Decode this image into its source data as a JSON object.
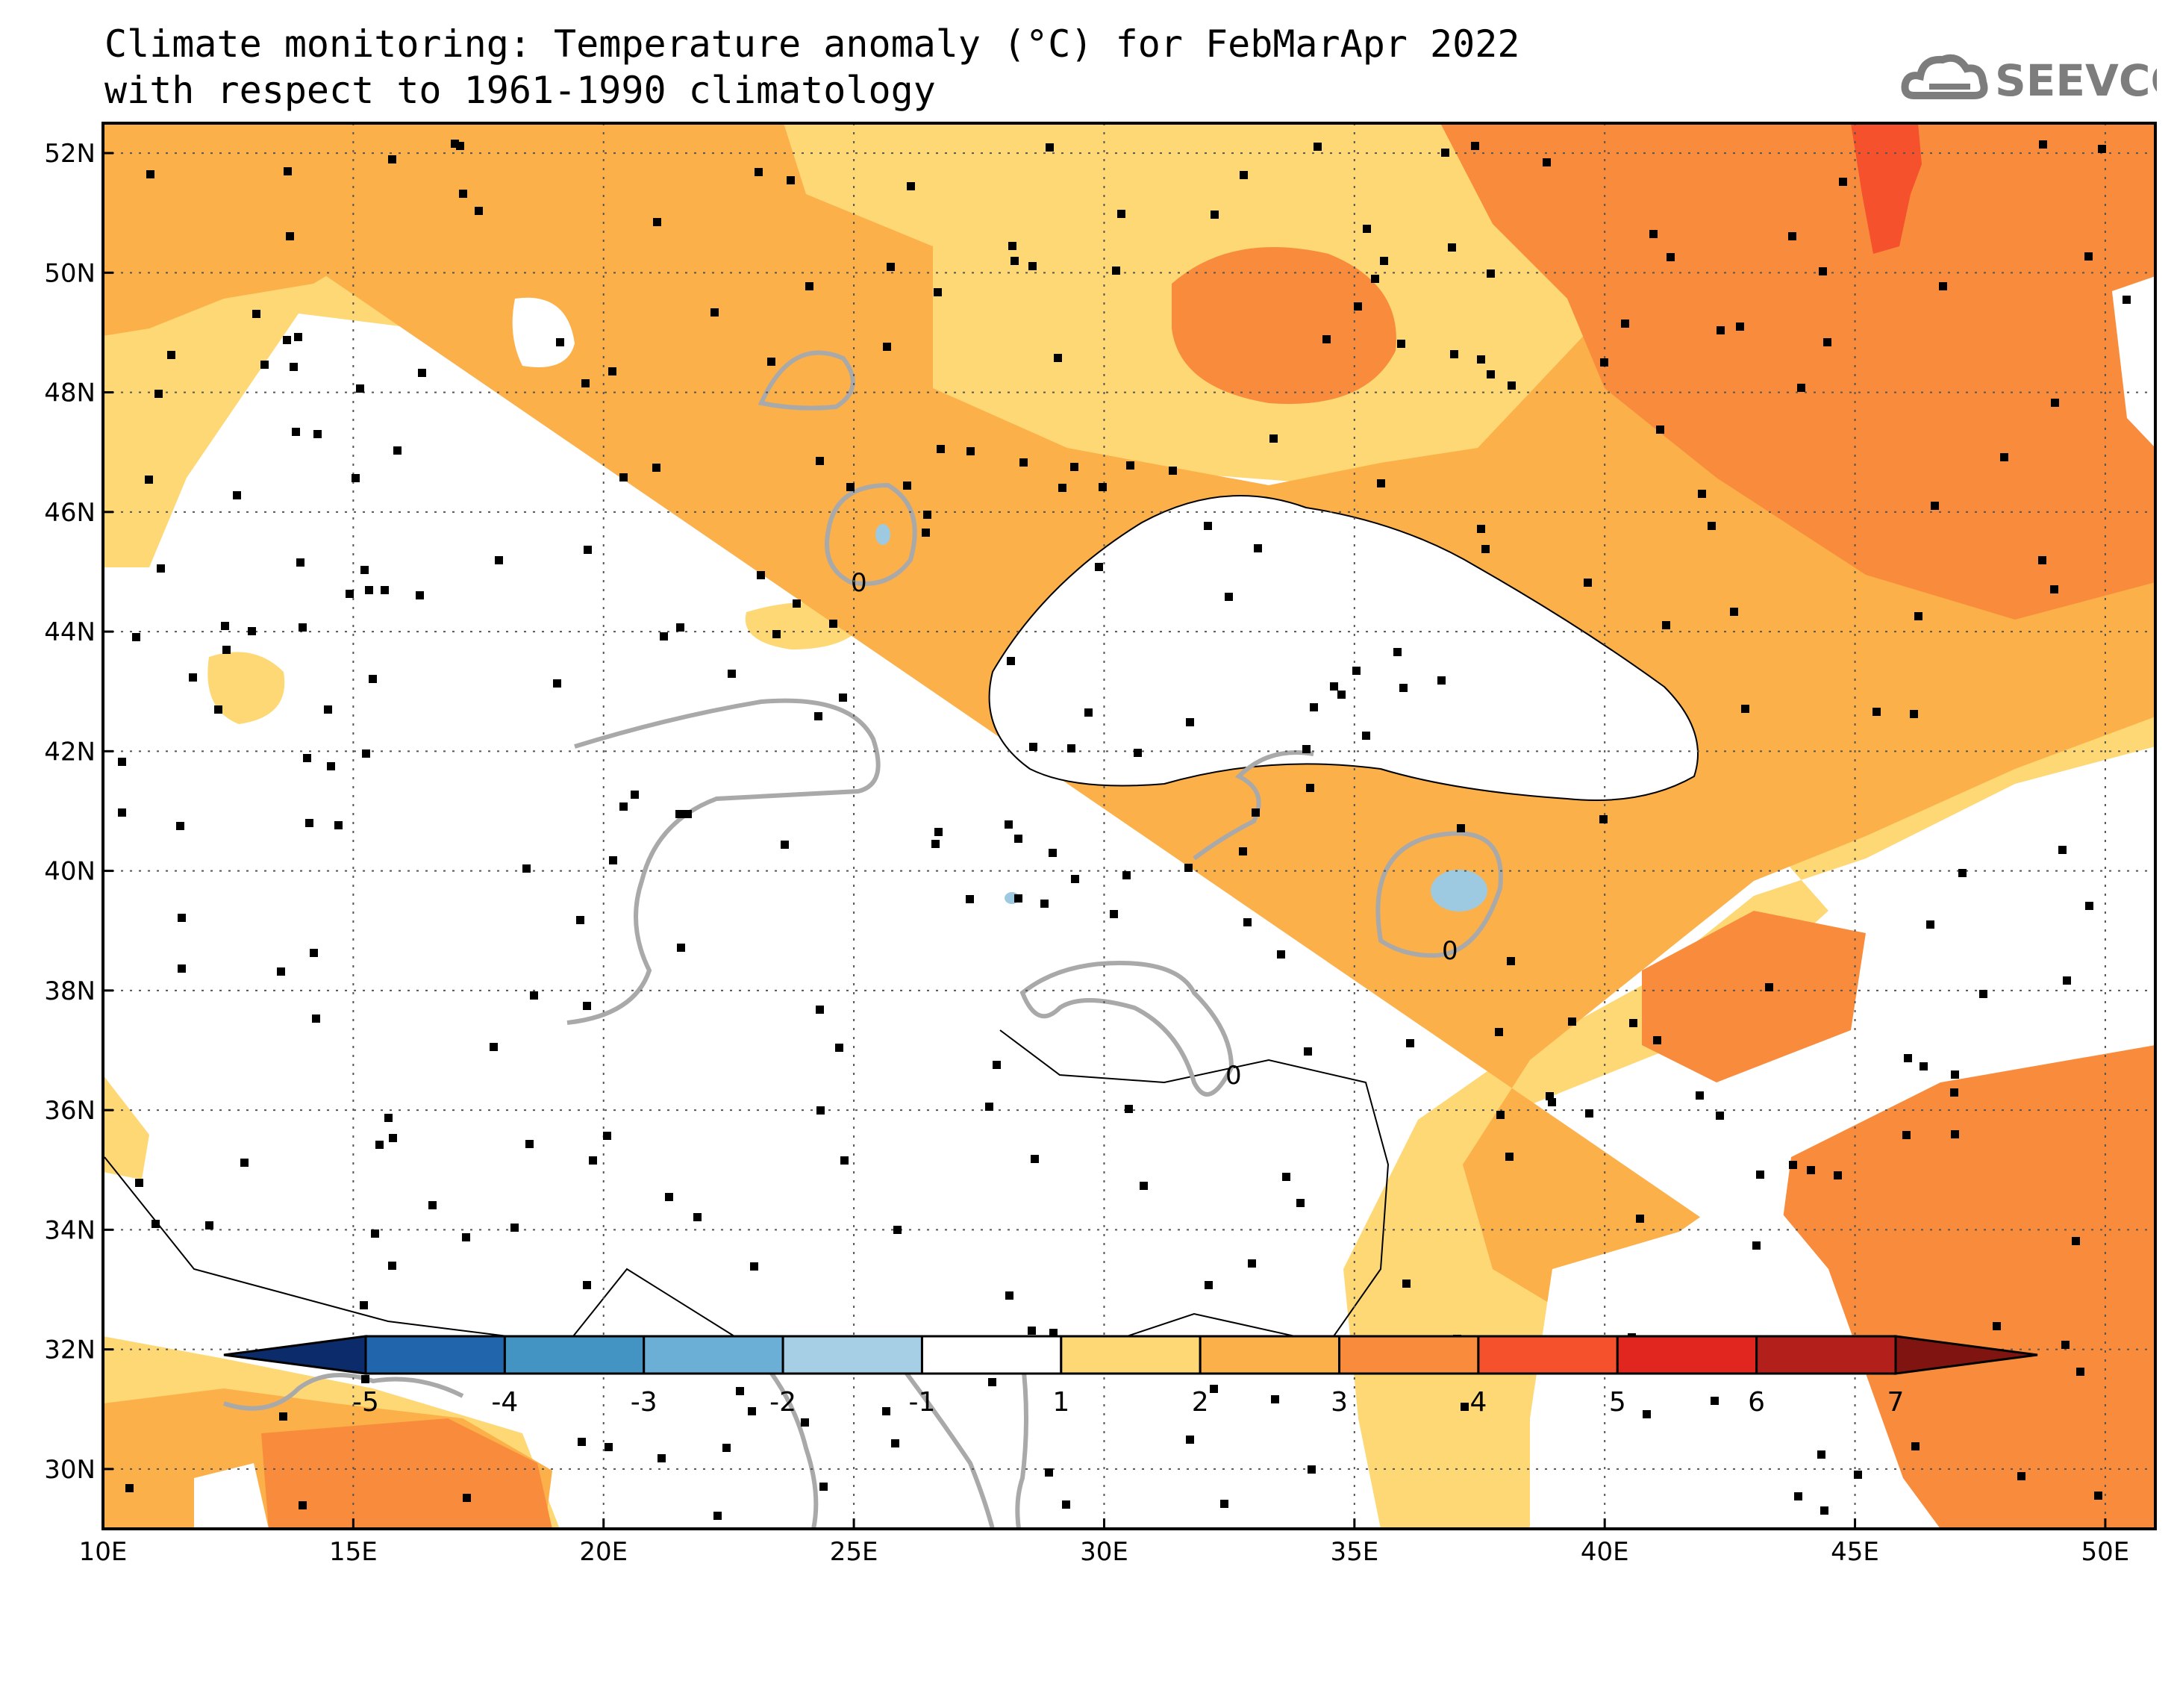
{
  "title": {
    "line1": "Climate monitoring: Temperature anomaly (°C) for FebMarApr 2022",
    "line2": "with respect to 1961-1990 climatology"
  },
  "logo": {
    "text": "SEEVCCC",
    "icon": "cloud-icon"
  },
  "map": {
    "lon_range": [
      10,
      51
    ],
    "lat_range": [
      29,
      52.5
    ],
    "x_ticks": [
      "10E",
      "15E",
      "20E",
      "25E",
      "30E",
      "35E",
      "40E",
      "45E",
      "50E"
    ],
    "y_ticks": [
      "52N",
      "50N",
      "48N",
      "46N",
      "44N",
      "42N",
      "40N",
      "38N",
      "36N",
      "34N",
      "32N",
      "30N"
    ],
    "contour_label": "0"
  },
  "colorbar": {
    "labels": [
      "-5",
      "-4",
      "-3",
      "-2",
      "-1",
      "1",
      "2",
      "3",
      "4",
      "5",
      "6",
      "7"
    ],
    "colors": [
      "#0b2b6b",
      "#2166ac",
      "#4393c3",
      "#6baed6",
      "#a6cfe6",
      "#ffffff",
      "#fdd875",
      "#fbb04a",
      "#f98c3c",
      "#f4512c",
      "#e0261f",
      "#b3201c",
      "#7f1410"
    ]
  },
  "colors": {
    "anom_1_2": "#fdd875",
    "anom_2_3": "#fbb04a",
    "anom_3_4": "#f98c3c",
    "anom_4_5": "#f4512c",
    "anom_neg": "#9ecae1",
    "contour": "#a9a9a9"
  }
}
